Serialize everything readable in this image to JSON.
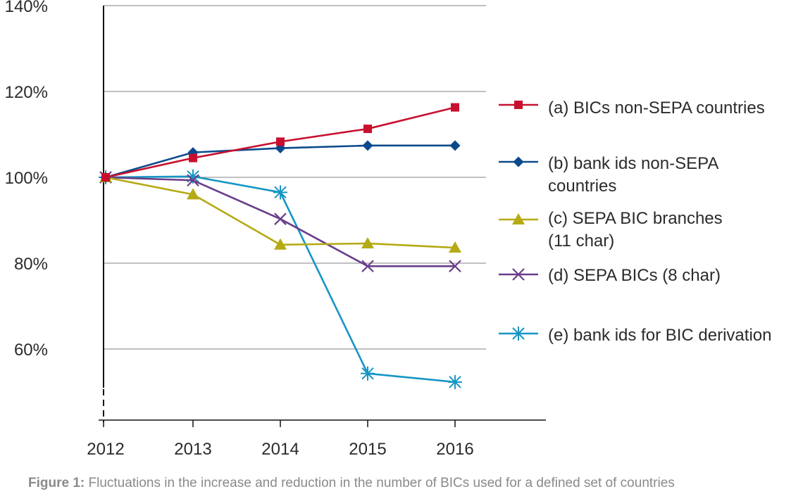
{
  "chart_data": {
    "type": "line",
    "x": [
      "2012",
      "2013",
      "2014",
      "2015",
      "2016"
    ],
    "ylim": [
      40,
      140
    ],
    "yticks": [
      "60%",
      "80%",
      "100%",
      "120%",
      "140%"
    ],
    "ytick_values": [
      60,
      80,
      100,
      120,
      140
    ],
    "grid": true,
    "legend_position": "right",
    "series": [
      {
        "name": "(a) BICs non-SEPA countries",
        "color": "#c8102e",
        "marker": "square",
        "values": [
          100,
          104.5,
          108.3,
          111.3,
          116.3
        ]
      },
      {
        "name": "(b) bank ids non-SEPA countries",
        "color": "#0a4a8c",
        "marker": "diamond",
        "values": [
          100,
          105.8,
          106.8,
          107.4,
          107.4
        ]
      },
      {
        "name": "(c) SEPA BIC branches (11 char)",
        "color": "#b5aa13",
        "marker": "triangle",
        "values": [
          100,
          96,
          84.3,
          84.6,
          83.6
        ]
      },
      {
        "name": "(d) SEPA BICs (8 char)",
        "color": "#6a3d8a",
        "marker": "x",
        "values": [
          100,
          99.3,
          90.3,
          79.3,
          79.3
        ]
      },
      {
        "name": "(e) bank ids for BIC derivation",
        "color": "#1596c4",
        "marker": "star",
        "values": [
          100,
          100.2,
          96.5,
          54.3,
          52.3
        ]
      }
    ]
  },
  "legend": {
    "a": {
      "line1": "(a) BICs non-SEPA countries",
      "line2": ""
    },
    "b": {
      "line1": "(b) bank ids non-SEPA",
      "line2": "countries"
    },
    "c": {
      "line1": "(c) SEPA BIC branches",
      "line2": "(11 char)"
    },
    "d": {
      "line1": "(d) SEPA BICs (8 char)",
      "line2": ""
    },
    "e": {
      "line1": "(e) bank ids for BIC derivation",
      "line2": ""
    }
  },
  "caption": {
    "lead": "Figure 1:",
    "text": " Fluctuations in the increase and reduction in the number of BICs used for a defined set of countries"
  }
}
